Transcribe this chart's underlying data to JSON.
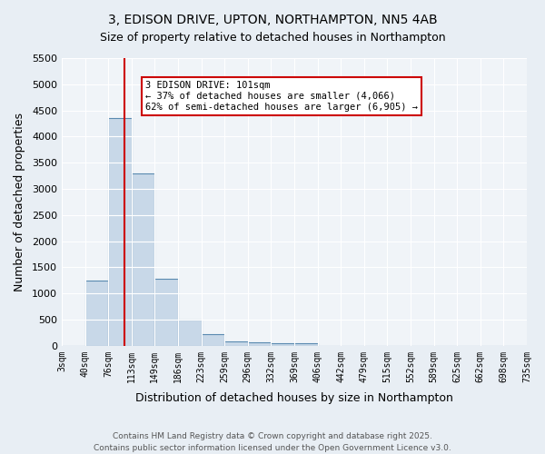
{
  "title1": "3, EDISON DRIVE, UPTON, NORTHAMPTON, NN5 4AB",
  "title2": "Size of property relative to detached houses in Northampton",
  "xlabel": "Distribution of detached houses by size in Northampton",
  "ylabel": "Number of detached properties",
  "footer1": "Contains HM Land Registry data © Crown copyright and database right 2025.",
  "footer2": "Contains public sector information licensed under the Open Government Licence v3.0.",
  "bin_labels": [
    "3sqm",
    "40sqm",
    "76sqm",
    "113sqm",
    "149sqm",
    "186sqm",
    "223sqm",
    "259sqm",
    "296sqm",
    "332sqm",
    "369sqm",
    "406sqm",
    "442sqm",
    "479sqm",
    "515sqm",
    "552sqm",
    "589sqm",
    "625sqm",
    "662sqm",
    "698sqm",
    "735sqm"
  ],
  "bar_values": [
    0,
    1250,
    4350,
    3300,
    1280,
    500,
    220,
    80,
    60,
    50,
    40,
    0,
    0,
    0,
    0,
    0,
    0,
    0,
    0,
    0
  ],
  "bar_color": "#c8d8e8",
  "bar_edge_color": "#5a8ab0",
  "red_line_x": 2.7,
  "annotation_text": "3 EDISON DRIVE: 101sqm\n← 37% of detached houses are smaller (4,066)\n62% of semi-detached houses are larger (6,905) →",
  "annotation_box_color": "#ffffff",
  "annotation_box_edge": "#cc0000",
  "red_line_color": "#cc0000",
  "ylim": [
    0,
    5500
  ],
  "yticks": [
    0,
    500,
    1000,
    1500,
    2000,
    2500,
    3000,
    3500,
    4000,
    4500,
    5000,
    5500
  ],
  "bg_color": "#e8eef4",
  "plot_bg_color": "#f0f4f8"
}
